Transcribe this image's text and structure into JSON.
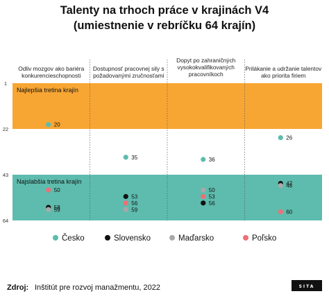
{
  "title_line1": "Talenty na trhoch práce v krajinách V4",
  "title_line2": "(umiestnenie v rebríčku 64 krajín)",
  "source_label": "Zdroj:",
  "source_text": "Inštitút pre rozvoj manažmentu, 2022",
  "logo_text": "SITA",
  "chart_data": {
    "type": "scatter",
    "title": "Talenty na trhoch práce v krajinách V4 (umiestnenie v rebríčku 64 krajín)",
    "y_axis": {
      "reversed": true,
      "ylim": [
        1,
        64
      ],
      "tick_labels": [
        "1",
        "22",
        "43",
        "64"
      ]
    },
    "bands": [
      {
        "label": "Najlepšia tretina krajín",
        "from": 1,
        "to": 22,
        "color": "#f8a633"
      },
      {
        "label": "",
        "from": 22,
        "to": 43,
        "color": "#ffffff"
      },
      {
        "label": "Najslabšia tretina krajín",
        "from": 43,
        "to": 64,
        "color": "#5dbcae"
      }
    ],
    "categories": [
      [
        "Odliv mozgov ako bariéra",
        "konkurencieschopnosti"
      ],
      [
        "Dostupnosť pracovnej sily s",
        "požadovanými zručnosťami"
      ],
      [
        "Dopyt po zahraničných",
        "vysokokvalifikovaných",
        "pracovníkoch"
      ],
      [
        "Prilákanie a udržanie talentov",
        "ako priorita firiem"
      ]
    ],
    "series": [
      {
        "name": "Česko",
        "color": "#5dbcae",
        "values": [
          20,
          35,
          36,
          26
        ]
      },
      {
        "name": "Slovensko",
        "color": "#111111",
        "values": [
          58,
          53,
          56,
          47
        ]
      },
      {
        "name": "Maďarsko",
        "color": "#a9a9a9",
        "values": [
          59,
          59,
          50,
          48
        ]
      },
      {
        "name": "Poľsko",
        "color": "#ef6f77",
        "values": [
          50,
          56,
          53,
          60
        ]
      }
    ]
  }
}
